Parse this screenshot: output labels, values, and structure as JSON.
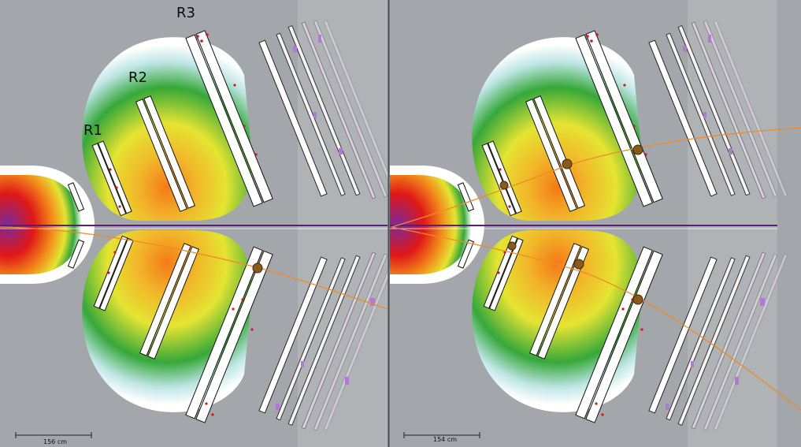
{
  "labels": {
    "r1": "R1",
    "r2": "R2",
    "r3": "R3"
  },
  "scale_left": "156 cm",
  "scale_right": "154 cm",
  "colors": {
    "background": "#a3a6aa",
    "background_right_band": "#b0b3b6",
    "divider": "#4a4d52",
    "beamline": "#5a1e7a",
    "track": "#f08a24",
    "hit": "#d01818",
    "field_outer": "#ffffff",
    "field_green": "#2fa52f",
    "field_yellow": "#e6e62e",
    "field_orange": "#f28c1a",
    "field_red": "#e01818",
    "purple_block": "#b27ad2"
  }
}
